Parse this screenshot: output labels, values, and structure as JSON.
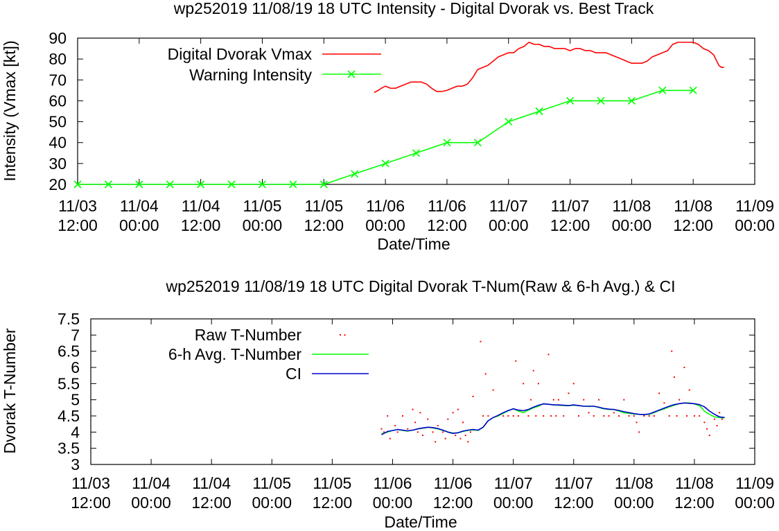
{
  "chart_data": [
    {
      "type": "line",
      "title": "wp252019 11/08/19  18 UTC Intensity - Digital Dvorak vs. Best Track",
      "xlabel": "Date/Time",
      "ylabel": "Intensity (Vmax [kt])",
      "ylim": [
        20,
        90
      ],
      "xlim": [
        0,
        132
      ],
      "yticks": [
        "20",
        "30",
        "40",
        "50",
        "60",
        "70",
        "80",
        "90"
      ],
      "xticks": [
        {
          "x": 0,
          "line1": "11/03",
          "line2": "12:00"
        },
        {
          "x": 12,
          "line1": "11/04",
          "line2": "00:00"
        },
        {
          "x": 24,
          "line1": "11/04",
          "line2": "12:00"
        },
        {
          "x": 36,
          "line1": "11/05",
          "line2": "00:00"
        },
        {
          "x": 48,
          "line1": "11/05",
          "line2": "12:00"
        },
        {
          "x": 60,
          "line1": "11/06",
          "line2": "00:00"
        },
        {
          "x": 72,
          "line1": "11/06",
          "line2": "12:00"
        },
        {
          "x": 84,
          "line1": "11/07",
          "line2": "00:00"
        },
        {
          "x": 96,
          "line1": "11/07",
          "line2": "12:00"
        },
        {
          "x": 108,
          "line1": "11/08",
          "line2": "00:00"
        },
        {
          "x": 120,
          "line1": "11/08",
          "line2": "12:00"
        },
        {
          "x": 132,
          "line1": "11/09",
          "line2": "00:00"
        }
      ],
      "legend": "top-left",
      "series": [
        {
          "name": "Digital Dvorak Vmax",
          "color": "#ff0000",
          "style": "line",
          "x": [
            57.8,
            58.6,
            59.2,
            60,
            61,
            62,
            63,
            64,
            65,
            66,
            67,
            68,
            69,
            70,
            71,
            72,
            73,
            74,
            75,
            76,
            77,
            78,
            79,
            80,
            81,
            82,
            83,
            84,
            85,
            86,
            87,
            88,
            89,
            90,
            91,
            92,
            93,
            94,
            95,
            96,
            97,
            98,
            99,
            100,
            101,
            102,
            103,
            104,
            105,
            106,
            107,
            108,
            109,
            110,
            111,
            112,
            113,
            114,
            115,
            116,
            117,
            118,
            119,
            120,
            121,
            122,
            123,
            124,
            124.6,
            125,
            125.5,
            126
          ],
          "values": [
            64,
            65,
            66,
            67,
            66,
            66,
            67,
            68,
            69,
            69,
            69,
            68,
            66,
            64.5,
            64.5,
            65,
            66,
            67,
            67,
            68,
            71,
            75,
            76,
            77,
            79,
            81,
            82,
            83,
            83,
            85,
            86,
            88,
            87,
            87,
            86,
            86,
            85,
            85,
            85,
            84,
            85,
            85,
            84,
            84,
            83,
            83,
            83,
            82,
            81,
            80,
            79,
            78,
            78,
            78,
            79,
            81,
            82,
            83,
            84,
            87,
            88,
            88,
            88,
            88,
            87,
            85,
            84,
            82,
            79,
            77,
            76,
            76
          ]
        },
        {
          "name": "Warning Intensity",
          "color": "#00ff00",
          "style": "linespoints",
          "x": [
            0,
            6,
            12,
            18,
            24,
            30,
            36,
            42,
            48,
            54,
            60,
            66,
            72,
            78,
            84,
            90,
            96,
            102,
            108,
            114,
            120
          ],
          "values": [
            20,
            20,
            20,
            20,
            20,
            20,
            20,
            20,
            20,
            25,
            30,
            35,
            40,
            40,
            50,
            55,
            60,
            60,
            60,
            65,
            65
          ]
        }
      ]
    },
    {
      "type": "line",
      "title": "wp252019 11/08/19  18 UTC Digital Dvorak T-Num(Raw & 6-h Avg.) & CI",
      "xlabel": "Date/Time",
      "ylabel": "Dvorak T-Number",
      "ylim": [
        3,
        7.5
      ],
      "xlim": [
        0,
        132
      ],
      "yticks": [
        "3",
        "3.5",
        "4",
        "4.5",
        "5",
        "5.5",
        "6",
        "6.5",
        "7",
        "7.5"
      ],
      "xticks": [
        {
          "x": 0,
          "line1": "11/03",
          "line2": "12:00"
        },
        {
          "x": 12,
          "line1": "11/04",
          "line2": "00:00"
        },
        {
          "x": 24,
          "line1": "11/04",
          "line2": "12:00"
        },
        {
          "x": 36,
          "line1": "11/05",
          "line2": "00:00"
        },
        {
          "x": 48,
          "line1": "11/05",
          "line2": "12:00"
        },
        {
          "x": 60,
          "line1": "11/06",
          "line2": "00:00"
        },
        {
          "x": 72,
          "line1": "11/06",
          "line2": "12:00"
        },
        {
          "x": 84,
          "line1": "11/07",
          "line2": "00:00"
        },
        {
          "x": 96,
          "line1": "11/07",
          "line2": "12:00"
        },
        {
          "x": 108,
          "line1": "11/08",
          "line2": "00:00"
        },
        {
          "x": 120,
          "line1": "11/08",
          "line2": "12:00"
        },
        {
          "x": 132,
          "line1": "11/09",
          "line2": "00:00"
        }
      ],
      "legend": "top-left",
      "series": [
        {
          "name": "Raw T-Number",
          "color": "#ff0000",
          "style": "dots",
          "x": [
            50.5,
            57.8,
            58.3,
            59,
            59.5,
            60.5,
            61,
            62,
            63,
            64,
            64.5,
            65,
            65.5,
            66,
            67,
            68,
            68.5,
            69,
            70,
            70.5,
            71,
            72,
            72.5,
            73,
            73.5,
            74,
            74.5,
            75,
            75.5,
            76,
            77.5,
            78,
            78.5,
            79,
            80,
            81,
            82,
            83,
            84,
            84.5,
            85,
            86,
            87,
            87.5,
            88,
            88.5,
            89,
            90,
            91,
            91.5,
            92,
            92.5,
            93,
            94,
            95,
            96,
            97,
            98,
            99,
            100,
            101,
            102,
            103,
            104,
            105,
            106,
            107,
            108,
            108.5,
            109,
            110,
            111,
            112,
            113,
            114,
            115,
            115.5,
            116,
            116.5,
            117,
            118,
            118.5,
            119,
            120,
            121,
            122,
            122.5,
            123,
            124,
            124.5,
            125,
            125.5
          ],
          "values": [
            7,
            4.1,
            4.0,
            4.5,
            3.8,
            4.2,
            4.0,
            4.5,
            4.1,
            4.7,
            4.3,
            4.0,
            4.6,
            3.9,
            4.4,
            4.0,
            3.7,
            4.2,
            4.0,
            3.8,
            4.4,
            4.6,
            3.9,
            4.7,
            3.8,
            4.3,
            3.9,
            3.7,
            4.0,
            5.1,
            6.8,
            4.5,
            5.8,
            4.5,
            5.3,
            4.5,
            4.5,
            4.5,
            4.5,
            6.2,
            4.5,
            5.5,
            4.5,
            5.0,
            5.9,
            4.5,
            5.5,
            4.5,
            6.4,
            4.5,
            5.0,
            4.5,
            5.0,
            4.5,
            5.2,
            5.5,
            4.5,
            5.0,
            4.6,
            4.5,
            5.0,
            4.5,
            4.5,
            4.6,
            4.5,
            5.0,
            4.5,
            4.5,
            4.3,
            4.0,
            4.5,
            4.5,
            4.5,
            5.2,
            4.9,
            4.5,
            6.5,
            5.7,
            4.5,
            5.0,
            6.0,
            4.5,
            5.3,
            4.5,
            4.5,
            4.3,
            4.1,
            3.9,
            4.4,
            4.2,
            4.6,
            4.4
          ]
        },
        {
          "name": "6-h Avg. T-Number",
          "color": "#00ff00",
          "style": "line",
          "x": [
            57.8,
            59,
            60,
            61,
            62,
            63,
            64,
            65,
            66,
            67,
            68,
            69,
            70,
            71,
            72,
            73,
            74,
            75,
            76,
            77,
            78,
            79,
            80,
            81,
            82,
            83,
            84,
            85,
            86,
            87,
            88,
            89,
            90,
            91,
            92,
            93,
            94,
            95,
            96,
            97,
            98,
            99,
            100,
            101,
            102,
            103,
            104,
            105,
            106,
            107,
            108,
            109,
            110,
            111,
            112,
            113,
            114,
            115,
            116,
            117,
            118,
            119,
            120,
            121,
            122,
            123,
            124,
            125,
            126
          ],
          "values": [
            3.95,
            4.0,
            4.05,
            4.08,
            4.05,
            4.03,
            4.06,
            4.1,
            4.12,
            4.15,
            4.13,
            4.1,
            4.05,
            4.0,
            3.97,
            3.98,
            4.02,
            4.05,
            4.07,
            4.05,
            4.15,
            4.35,
            4.45,
            4.5,
            4.58,
            4.66,
            4.72,
            4.65,
            4.6,
            4.68,
            4.75,
            4.8,
            4.88,
            4.86,
            4.84,
            4.83,
            4.82,
            4.82,
            4.83,
            4.82,
            4.8,
            4.79,
            4.8,
            4.76,
            4.72,
            4.7,
            4.7,
            4.65,
            4.6,
            4.58,
            4.56,
            4.55,
            4.54,
            4.55,
            4.6,
            4.67,
            4.72,
            4.78,
            4.83,
            4.88,
            4.9,
            4.9,
            4.87,
            4.82,
            4.65,
            4.55,
            4.47,
            4.45,
            4.44
          ]
        },
        {
          "name": "CI",
          "color": "#0000cd",
          "style": "line",
          "x": [
            57.8,
            59,
            60,
            61,
            62,
            63,
            64,
            65,
            66,
            67,
            68,
            69,
            70,
            71,
            72,
            73,
            74,
            75,
            76,
            77,
            78,
            79,
            80,
            81,
            82,
            83,
            84,
            85,
            86,
            87,
            88,
            89,
            90,
            91,
            92,
            93,
            94,
            95,
            96,
            97,
            98,
            99,
            100,
            101,
            102,
            103,
            104,
            105,
            106,
            107,
            108,
            109,
            110,
            111,
            112,
            113,
            114,
            115,
            116,
            117,
            118,
            119,
            120,
            121,
            122,
            123,
            124,
            125,
            126
          ],
          "values": [
            3.92,
            4.02,
            4.05,
            4.08,
            4.06,
            4.04,
            4.06,
            4.1,
            4.13,
            4.15,
            4.14,
            4.11,
            4.06,
            4.0,
            3.96,
            3.98,
            4.03,
            4.06,
            4.08,
            4.06,
            4.15,
            4.35,
            4.45,
            4.52,
            4.6,
            4.67,
            4.72,
            4.68,
            4.66,
            4.7,
            4.77,
            4.83,
            4.87,
            4.86,
            4.84,
            4.84,
            4.83,
            4.82,
            4.84,
            4.82,
            4.8,
            4.8,
            4.8,
            4.77,
            4.73,
            4.71,
            4.7,
            4.67,
            4.63,
            4.6,
            4.57,
            4.55,
            4.54,
            4.56,
            4.62,
            4.68,
            4.74,
            4.8,
            4.85,
            4.88,
            4.9,
            4.89,
            4.88,
            4.85,
            4.78,
            4.65,
            4.55,
            4.47,
            4.45
          ]
        }
      ]
    }
  ]
}
